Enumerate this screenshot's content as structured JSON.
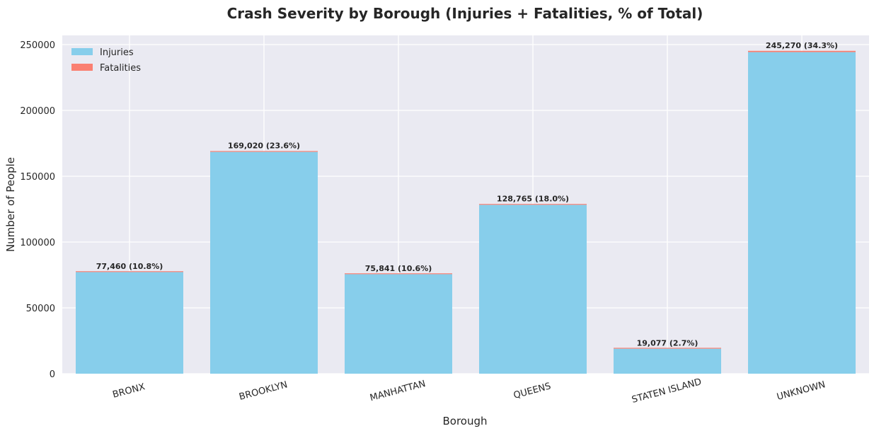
{
  "chart_data": {
    "type": "bar",
    "stacked": true,
    "title": "Crash Severity by Borough (Injuries + Fatalities, % of Total)",
    "xlabel": "Borough",
    "ylabel": "Number of People",
    "categories": [
      "BRONX",
      "BROOKLYN",
      "MANHATTAN",
      "QUEENS",
      "STATEN ISLAND",
      "UNKNOWN"
    ],
    "series": [
      {
        "name": "Injuries",
        "color": "#87CEEB",
        "values": [
          77200,
          168500,
          75600,
          128300,
          19000,
          244300
        ]
      },
      {
        "name": "Fatalities",
        "color": "#FA8072",
        "values": [
          260,
          520,
          241,
          465,
          77,
          970
        ]
      }
    ],
    "data_labels": [
      "77,460 (10.8%)",
      "169,020 (23.6%)",
      "75,841 (10.6%)",
      "128,765 (18.0%)",
      "19,077 (2.7%)",
      "245,270 (34.3%)"
    ],
    "yticks": [
      "0",
      "50000",
      "100000",
      "150000",
      "200000",
      "250000"
    ],
    "ylim": [
      0,
      257000
    ],
    "grid": true,
    "legend_position": "upper left",
    "background_color": "#EAEAF2"
  }
}
